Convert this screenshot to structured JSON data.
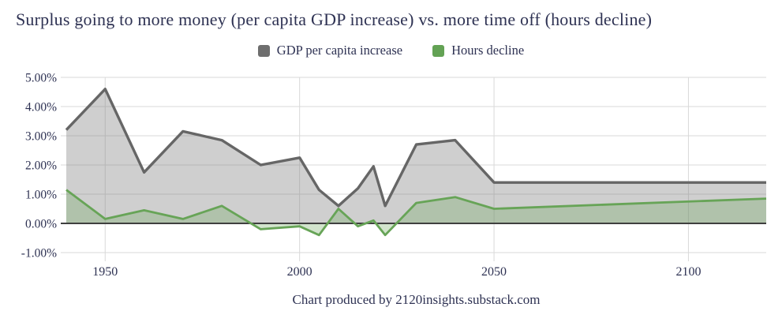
{
  "title": "Surplus going to more money (per capita GDP increase) vs. more time off (hours decline)",
  "legend": [
    {
      "label": "GDP per capita increase",
      "color": "#6e6e6e"
    },
    {
      "label": "Hours decline",
      "color": "#63a254"
    }
  ],
  "footer": "Chart produced by 2120insights.substack.com",
  "colors": {
    "text_navy": "#2e3253",
    "gridline": "#d9d9d9",
    "zero_line": "#3f3f3f",
    "gdp_line": "#666666",
    "hours_line": "#67a457"
  },
  "chart_data": {
    "type": "area",
    "title": "Surplus going to more money (per capita GDP increase) vs. more time off (hours decline)",
    "xlabel": "",
    "ylabel": "",
    "x": [
      1940,
      1950,
      1960,
      1970,
      1980,
      1990,
      2000,
      2005,
      2010,
      2015,
      2019,
      2022,
      2030,
      2040,
      2050,
      2120
    ],
    "series": [
      {
        "name": "GDP per capita increase",
        "color": "#666666",
        "fill": "rgba(128,128,128,0.38)",
        "values": [
          3.2,
          4.6,
          1.75,
          3.15,
          2.85,
          2.0,
          2.25,
          1.15,
          0.6,
          1.2,
          1.95,
          0.6,
          2.7,
          2.85,
          1.4,
          1.4
        ]
      },
      {
        "name": "Hours decline",
        "color": "#67a457",
        "fill": "rgba(106,164,88,0.30)",
        "values": [
          1.15,
          0.15,
          0.45,
          0.15,
          0.6,
          -0.2,
          -0.1,
          -0.4,
          0.5,
          -0.1,
          0.1,
          -0.4,
          0.7,
          0.9,
          0.5,
          0.85
        ]
      }
    ],
    "xlim": [
      1940,
      2120
    ],
    "ylim": [
      -1,
      5
    ],
    "x_ticks": [
      1950,
      2000,
      2050,
      2100
    ],
    "y_ticks": [
      "5.00%",
      "4.00%",
      "3.00%",
      "2.00%",
      "1.00%",
      "0.00%",
      "-1.00%"
    ],
    "y_tick_values": [
      5,
      4,
      3,
      2,
      1,
      0,
      -1
    ],
    "grid": true,
    "legend_position": "top",
    "baseline": 0
  }
}
